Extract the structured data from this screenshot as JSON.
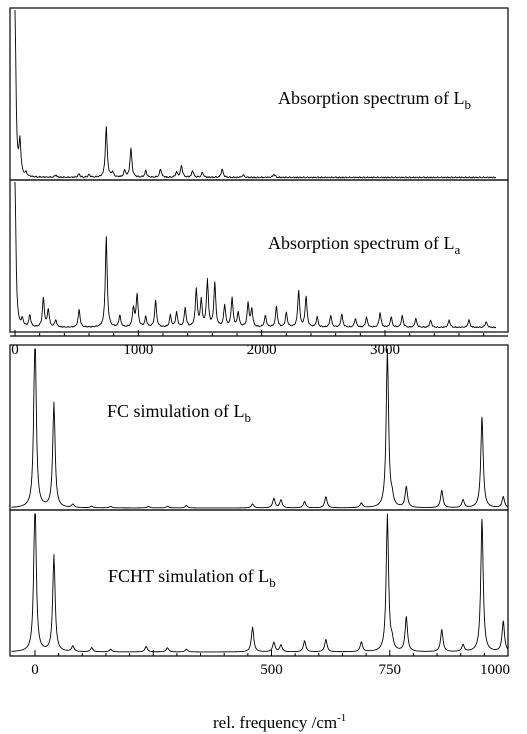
{
  "chart_data": [
    {
      "type": "line",
      "panel": "top",
      "label": {
        "main": "Absorption spectrum of L",
        "sub": "b"
      },
      "x_axis": {
        "ticks": [
          "0",
          "1000",
          "2000",
          "3000"
        ],
        "xlim": [
          0,
          3900
        ]
      },
      "peaks": [
        {
          "x": 0,
          "y": 1.0
        },
        {
          "x": 40,
          "y": 0.2
        },
        {
          "x": 90,
          "y": 0.02
        },
        {
          "x": 330,
          "y": 0.015
        },
        {
          "x": 520,
          "y": 0.02
        },
        {
          "x": 600,
          "y": 0.015
        },
        {
          "x": 740,
          "y": 0.3
        },
        {
          "x": 790,
          "y": 0.03
        },
        {
          "x": 890,
          "y": 0.04
        },
        {
          "x": 940,
          "y": 0.17
        },
        {
          "x": 1060,
          "y": 0.04
        },
        {
          "x": 1180,
          "y": 0.05
        },
        {
          "x": 1310,
          "y": 0.03
        },
        {
          "x": 1350,
          "y": 0.07
        },
        {
          "x": 1440,
          "y": 0.04
        },
        {
          "x": 1520,
          "y": 0.03
        },
        {
          "x": 1680,
          "y": 0.05
        },
        {
          "x": 1850,
          "y": 0.015
        },
        {
          "x": 2100,
          "y": 0.02
        }
      ]
    },
    {
      "type": "line",
      "panel": "second",
      "label": {
        "main": "Absorption spectrum of L",
        "sub": "a"
      },
      "x_axis": {
        "ticks": [
          "0",
          "1000",
          "2000",
          "3000"
        ],
        "xlim": [
          0,
          3900
        ]
      },
      "peaks": [
        {
          "x": 0,
          "y": 1.0
        },
        {
          "x": 60,
          "y": 0.05
        },
        {
          "x": 120,
          "y": 0.08
        },
        {
          "x": 230,
          "y": 0.2
        },
        {
          "x": 270,
          "y": 0.12
        },
        {
          "x": 330,
          "y": 0.05
        },
        {
          "x": 520,
          "y": 0.12
        },
        {
          "x": 740,
          "y": 0.62
        },
        {
          "x": 850,
          "y": 0.08
        },
        {
          "x": 960,
          "y": 0.13
        },
        {
          "x": 990,
          "y": 0.22
        },
        {
          "x": 1060,
          "y": 0.07
        },
        {
          "x": 1140,
          "y": 0.18
        },
        {
          "x": 1260,
          "y": 0.08
        },
        {
          "x": 1310,
          "y": 0.1
        },
        {
          "x": 1380,
          "y": 0.13
        },
        {
          "x": 1470,
          "y": 0.26
        },
        {
          "x": 1510,
          "y": 0.18
        },
        {
          "x": 1560,
          "y": 0.32
        },
        {
          "x": 1620,
          "y": 0.3
        },
        {
          "x": 1700,
          "y": 0.15
        },
        {
          "x": 1760,
          "y": 0.2
        },
        {
          "x": 1810,
          "y": 0.1
        },
        {
          "x": 1890,
          "y": 0.16
        },
        {
          "x": 1920,
          "y": 0.12
        },
        {
          "x": 2030,
          "y": 0.08
        },
        {
          "x": 2120,
          "y": 0.14
        },
        {
          "x": 2200,
          "y": 0.1
        },
        {
          "x": 2300,
          "y": 0.25
        },
        {
          "x": 2360,
          "y": 0.21
        },
        {
          "x": 2450,
          "y": 0.07
        },
        {
          "x": 2560,
          "y": 0.08
        },
        {
          "x": 2650,
          "y": 0.09
        },
        {
          "x": 2760,
          "y": 0.06
        },
        {
          "x": 2850,
          "y": 0.07
        },
        {
          "x": 2960,
          "y": 0.1
        },
        {
          "x": 3050,
          "y": 0.07
        },
        {
          "x": 3140,
          "y": 0.08
        },
        {
          "x": 3250,
          "y": 0.06
        },
        {
          "x": 3370,
          "y": 0.05
        },
        {
          "x": 3520,
          "y": 0.05
        },
        {
          "x": 3680,
          "y": 0.05
        },
        {
          "x": 3820,
          "y": 0.04
        }
      ]
    },
    {
      "type": "line",
      "panel": "third",
      "label": {
        "main": "FC simulation of L",
        "sub": "b"
      },
      "x_axis": {
        "xlim": [
          -50,
          1000
        ]
      },
      "peaks": [
        {
          "x": 0,
          "y": 1.15
        },
        {
          "x": 40,
          "y": 0.66
        },
        {
          "x": 80,
          "y": 0.02
        },
        {
          "x": 120,
          "y": 0.01
        },
        {
          "x": 160,
          "y": 0.01
        },
        {
          "x": 240,
          "y": 0.01
        },
        {
          "x": 280,
          "y": 0.01
        },
        {
          "x": 320,
          "y": 0.015
        },
        {
          "x": 460,
          "y": 0.025
        },
        {
          "x": 505,
          "y": 0.06
        },
        {
          "x": 520,
          "y": 0.05
        },
        {
          "x": 570,
          "y": 0.04
        },
        {
          "x": 615,
          "y": 0.07
        },
        {
          "x": 690,
          "y": 0.03
        },
        {
          "x": 745,
          "y": 1.0
        },
        {
          "x": 755,
          "y": 0.05
        },
        {
          "x": 785,
          "y": 0.13
        },
        {
          "x": 860,
          "y": 0.11
        },
        {
          "x": 905,
          "y": 0.05
        },
        {
          "x": 945,
          "y": 0.57
        },
        {
          "x": 990,
          "y": 0.07
        }
      ]
    },
    {
      "type": "line",
      "panel": "bottom",
      "label": {
        "main": "FCHT simulation of L",
        "sub": "b"
      },
      "x_axis": {
        "ticks": [
          "0",
          "500",
          "750",
          "1000"
        ],
        "xlim": [
          -50,
          1000
        ]
      },
      "xlabel": {
        "main": "rel. frequency /cm",
        "sup": "-1"
      },
      "peaks": [
        {
          "x": 0,
          "y": 1.15
        },
        {
          "x": 40,
          "y": 0.7
        },
        {
          "x": 80,
          "y": 0.04
        },
        {
          "x": 120,
          "y": 0.03
        },
        {
          "x": 160,
          "y": 0.02
        },
        {
          "x": 235,
          "y": 0.04
        },
        {
          "x": 280,
          "y": 0.03
        },
        {
          "x": 320,
          "y": 0.02
        },
        {
          "x": 460,
          "y": 0.18
        },
        {
          "x": 505,
          "y": 0.07
        },
        {
          "x": 520,
          "y": 0.05
        },
        {
          "x": 570,
          "y": 0.08
        },
        {
          "x": 615,
          "y": 0.09
        },
        {
          "x": 690,
          "y": 0.07
        },
        {
          "x": 745,
          "y": 1.0
        },
        {
          "x": 755,
          "y": 0.06
        },
        {
          "x": 785,
          "y": 0.25
        },
        {
          "x": 860,
          "y": 0.16
        },
        {
          "x": 905,
          "y": 0.05
        },
        {
          "x": 945,
          "y": 0.96
        },
        {
          "x": 990,
          "y": 0.22
        }
      ]
    }
  ]
}
